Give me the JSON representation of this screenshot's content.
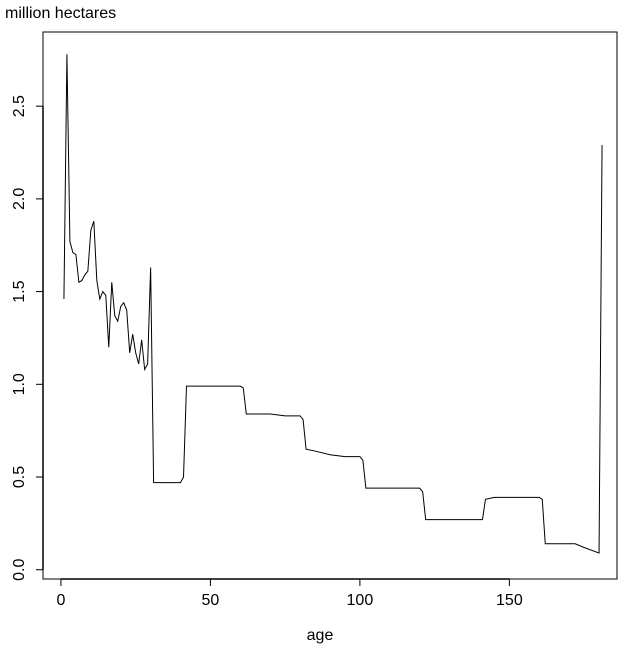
{
  "chart_data": {
    "type": "line",
    "title": "",
    "ylabel": "million hectares",
    "xlabel": "age",
    "xlim": [
      -6,
      186
    ],
    "ylim": [
      -0.05,
      2.9
    ],
    "xticks": [
      0,
      50,
      100,
      150
    ],
    "yticks": [
      0.0,
      0.5,
      1.0,
      1.5,
      2.0,
      2.5
    ],
    "ytick_labels": [
      "0.0",
      "0.5",
      "1.0",
      "1.5",
      "2.0",
      "2.5"
    ],
    "grid": false,
    "line_color": "#000000",
    "series": [
      {
        "x": [
          1,
          2,
          3,
          4,
          5,
          6,
          7,
          8,
          9,
          10,
          11,
          12,
          13,
          14,
          15,
          16,
          17,
          18,
          19,
          20,
          21,
          22,
          23,
          24,
          25,
          26,
          27,
          28,
          29,
          30,
          31,
          32,
          35,
          40,
          41,
          42,
          45,
          50,
          55,
          60,
          61,
          62,
          65,
          70,
          75,
          80,
          81,
          82,
          85,
          90,
          95,
          100,
          101,
          102,
          105,
          110,
          115,
          120,
          121,
          122,
          125,
          130,
          135,
          140,
          141,
          142,
          145,
          150,
          155,
          160,
          161,
          162,
          165,
          170,
          172,
          175,
          180,
          181
        ],
        "y": [
          1.46,
          2.78,
          1.77,
          1.71,
          1.7,
          1.55,
          1.56,
          1.59,
          1.61,
          1.83,
          1.88,
          1.56,
          1.46,
          1.5,
          1.48,
          1.2,
          1.55,
          1.37,
          1.34,
          1.42,
          1.44,
          1.4,
          1.17,
          1.27,
          1.17,
          1.11,
          1.24,
          1.08,
          1.11,
          1.63,
          0.47,
          0.47,
          0.47,
          0.47,
          0.5,
          0.99,
          0.99,
          0.99,
          0.99,
          0.99,
          0.98,
          0.84,
          0.84,
          0.84,
          0.83,
          0.83,
          0.81,
          0.65,
          0.64,
          0.62,
          0.61,
          0.61,
          0.59,
          0.44,
          0.44,
          0.44,
          0.44,
          0.44,
          0.42,
          0.27,
          0.27,
          0.27,
          0.27,
          0.27,
          0.27,
          0.38,
          0.39,
          0.39,
          0.39,
          0.39,
          0.38,
          0.14,
          0.14,
          0.14,
          0.14,
          0.12,
          0.09,
          2.29
        ]
      }
    ]
  }
}
